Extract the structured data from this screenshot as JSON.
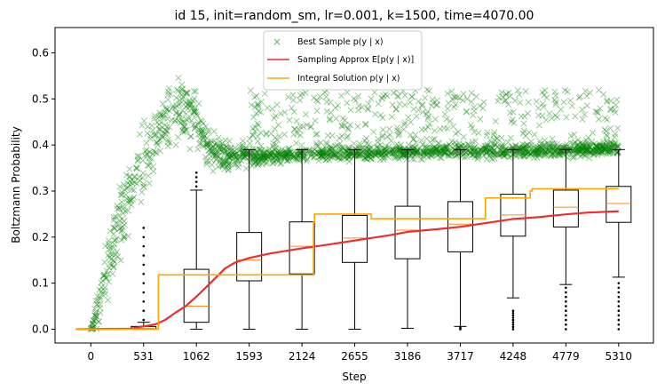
{
  "chart_data": {
    "type": "line",
    "title": "id 15, init=random_sm, lr=0.001, k=1500, time=4070.00",
    "xlabel": "Step",
    "ylabel": "Boltzmann Probability",
    "xlim": [
      -360,
      5660
    ],
    "ylim": [
      -0.03,
      0.655
    ],
    "x_ticks": [
      0,
      531,
      1062,
      1593,
      2124,
      2655,
      3186,
      3717,
      4248,
      4779,
      5310
    ],
    "y_ticks": [
      0.0,
      0.1,
      0.2,
      0.3,
      0.4,
      0.5,
      0.6
    ],
    "y_tick_labels": [
      "0.0",
      "0.1",
      "0.2",
      "0.3",
      "0.4",
      "0.5",
      "0.6"
    ],
    "grid": false,
    "legend_position": "top-center",
    "colors": {
      "best": "#008000",
      "sampling": "#ee2e2e",
      "integral": "#ffa500",
      "box": "#000000",
      "median": "#ff8c1a"
    },
    "series": [
      {
        "name": "Best Sample $p(y \\mid x)$",
        "legend_text": "Best Sample p(y | x)",
        "kind": "scatter-trend",
        "note": "dense scatter of x markers",
        "x": [
          0,
          100,
          200,
          300,
          400,
          500,
          600,
          700,
          800,
          900,
          1000,
          1062,
          1150,
          1300,
          1593,
          2124,
          2655,
          3186,
          3717,
          4248,
          4779,
          5310
        ],
        "y_center": [
          0.0,
          0.06,
          0.16,
          0.24,
          0.3,
          0.35,
          0.4,
          0.44,
          0.45,
          0.47,
          0.47,
          0.45,
          0.4,
          0.38,
          0.375,
          0.38,
          0.382,
          0.385,
          0.387,
          0.388,
          0.39,
          0.392
        ],
        "y_spread": [
          0.005,
          0.05,
          0.07,
          0.08,
          0.08,
          0.08,
          0.08,
          0.07,
          0.07,
          0.06,
          0.06,
          0.06,
          0.04,
          0.03,
          0.02,
          0.015,
          0.015,
          0.015,
          0.015,
          0.015,
          0.015,
          0.015
        ],
        "outlier_band": [
          0.4,
          0.52
        ],
        "outlier_x_range": [
          1593,
          5310
        ]
      },
      {
        "name": "Sampling Approx $E[p(y \\mid x)]$",
        "legend_text": "Sampling Approx E[p(y | x)]",
        "kind": "line",
        "x": [
          -150,
          400,
          650,
          750,
          850,
          950,
          1062,
          1200,
          1350,
          1450,
          1593,
          1800,
          2124,
          2400,
          2655,
          3000,
          3186,
          3500,
          3717,
          4000,
          4248,
          4500,
          4779,
          5000,
          5310
        ],
        "y": [
          0.0,
          0.0,
          0.01,
          0.02,
          0.035,
          0.05,
          0.07,
          0.1,
          0.13,
          0.145,
          0.155,
          0.165,
          0.175,
          0.185,
          0.193,
          0.203,
          0.21,
          0.218,
          0.223,
          0.232,
          0.238,
          0.243,
          0.248,
          0.252,
          0.256
        ]
      },
      {
        "name": "Integral Solution $p(y \\mid x)$",
        "legend_text": "Integral Solution p(y | x)",
        "kind": "step",
        "x": [
          -150,
          660,
          680,
          1000,
          1020,
          1440,
          1460,
          2200,
          2240,
          2250,
          2800,
          2820,
          3950,
          3970,
          4420,
          4440,
          5310
        ],
        "y": [
          0.0,
          0.0,
          0.118,
          0.118,
          0.118,
          0.118,
          0.118,
          0.118,
          0.232,
          0.25,
          0.25,
          0.24,
          0.24,
          0.285,
          0.3,
          0.305,
          0.305
        ]
      }
    ],
    "boxplots": [
      {
        "x": 531,
        "q1": 0.001,
        "median": 0.002,
        "q3": 0.006,
        "whisker_low": 0.0,
        "whisker_high": 0.015,
        "fliers": [
          0.02,
          0.04,
          0.06,
          0.08,
          0.1,
          0.12,
          0.14,
          0.16,
          0.18,
          0.2,
          0.22
        ]
      },
      {
        "x": 1062,
        "q1": 0.015,
        "median": 0.05,
        "q3": 0.13,
        "whisker_low": 0.0,
        "whisker_high": 0.302,
        "fliers": [
          0.31,
          0.32,
          0.33,
          0.34
        ]
      },
      {
        "x": 1593,
        "q1": 0.105,
        "median": 0.15,
        "q3": 0.21,
        "whisker_low": 0.0,
        "whisker_high": 0.39,
        "fliers": []
      },
      {
        "x": 2124,
        "q1": 0.12,
        "median": 0.18,
        "q3": 0.233,
        "whisker_low": 0.0,
        "whisker_high": 0.39,
        "fliers": []
      },
      {
        "x": 2655,
        "q1": 0.145,
        "median": 0.198,
        "q3": 0.247,
        "whisker_low": 0.0,
        "whisker_high": 0.39,
        "fliers": []
      },
      {
        "x": 3186,
        "q1": 0.153,
        "median": 0.215,
        "q3": 0.267,
        "whisker_low": 0.002,
        "whisker_high": 0.39,
        "fliers": []
      },
      {
        "x": 3717,
        "q1": 0.168,
        "median": 0.228,
        "q3": 0.277,
        "whisker_low": 0.006,
        "whisker_high": 0.39,
        "fliers": [
          0.0,
          0.002,
          0.004
        ]
      },
      {
        "x": 4248,
        "q1": 0.202,
        "median": 0.248,
        "q3": 0.293,
        "whisker_low": 0.068,
        "whisker_high": 0.39,
        "fliers": [
          0.0,
          0.005,
          0.01,
          0.015,
          0.02,
          0.025,
          0.03,
          0.035,
          0.04
        ]
      },
      {
        "x": 4779,
        "q1": 0.222,
        "median": 0.265,
        "q3": 0.302,
        "whisker_low": 0.097,
        "whisker_high": 0.39,
        "fliers": [
          0.0,
          0.01,
          0.02,
          0.03,
          0.04,
          0.05,
          0.06,
          0.07,
          0.08,
          0.09
        ]
      },
      {
        "x": 5310,
        "q1": 0.232,
        "median": 0.273,
        "q3": 0.31,
        "whisker_low": 0.113,
        "whisker_high": 0.39,
        "fliers": [
          0.0,
          0.01,
          0.02,
          0.03,
          0.04,
          0.05,
          0.06,
          0.07,
          0.08,
          0.09,
          0.1
        ]
      }
    ]
  }
}
